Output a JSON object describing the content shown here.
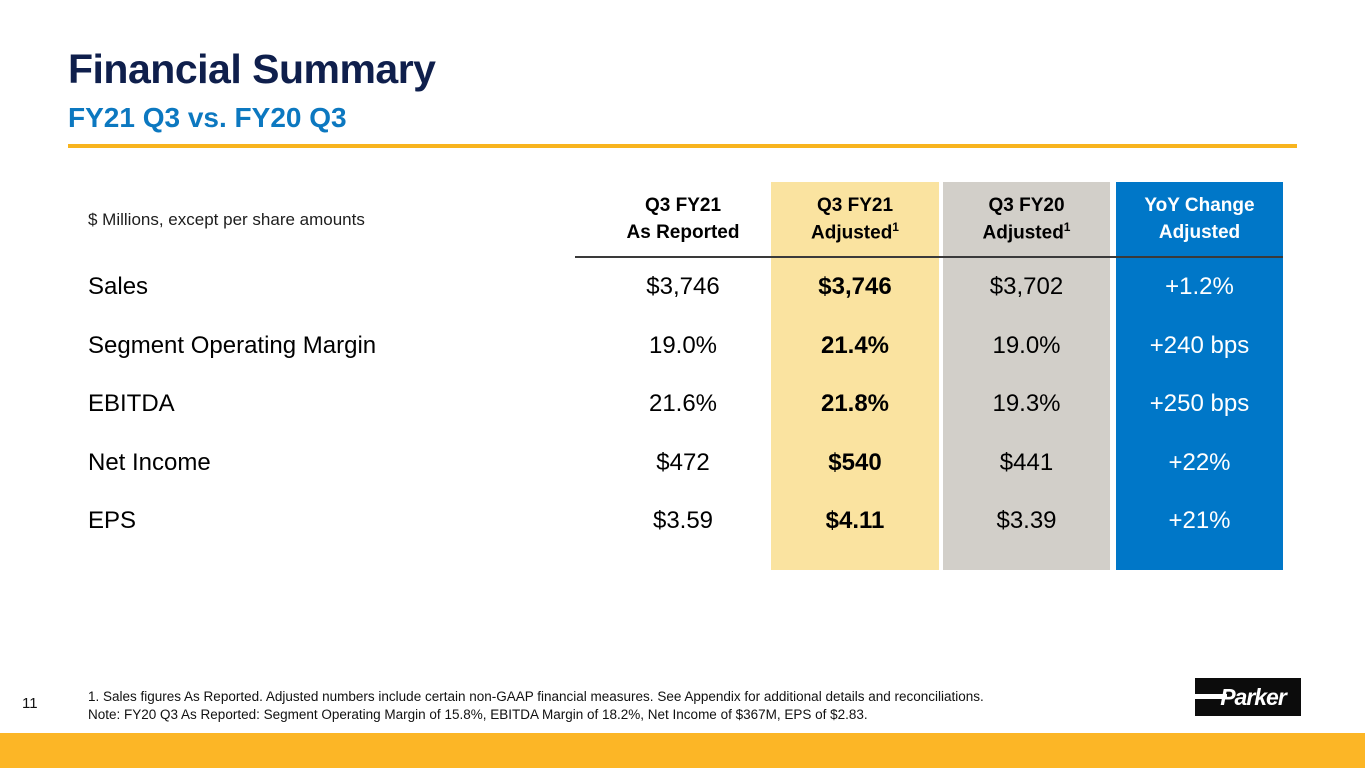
{
  "slide": {
    "title": "Financial Summary",
    "subtitle": "FY21 Q3 vs. FY20 Q3",
    "page_number": "11",
    "logo_text": "Parker"
  },
  "table": {
    "unit_note": "$ Millions, except per share amounts",
    "columns": [
      {
        "line1": "Q3 FY21",
        "line2": "As Reported",
        "superscript": ""
      },
      {
        "line1": "Q3 FY21",
        "line2": "Adjusted",
        "superscript": "1"
      },
      {
        "line1": "Q3 FY20",
        "line2": "Adjusted",
        "superscript": "1"
      },
      {
        "line1": "YoY Change",
        "line2": "Adjusted",
        "superscript": ""
      }
    ],
    "rows": [
      {
        "label": "Sales",
        "values": [
          "$3,746",
          "$3,746",
          "$3,702",
          "+1.2%"
        ]
      },
      {
        "label": "Segment Operating Margin",
        "values": [
          "19.0%",
          "21.4%",
          "19.0%",
          "+240 bps"
        ]
      },
      {
        "label": "EBITDA",
        "values": [
          "21.6%",
          "21.8%",
          "19.3%",
          "+250 bps"
        ]
      },
      {
        "label": "Net Income",
        "values": [
          "$472",
          "$540",
          "$441",
          "+22%"
        ]
      },
      {
        "label": "EPS",
        "values": [
          "$3.59",
          "$4.11",
          "$3.39",
          "+21%"
        ]
      }
    ]
  },
  "footnotes": {
    "line1": "1. Sales figures As Reported. Adjusted numbers include certain non-GAAP financial measures. See Appendix for additional details and reconciliations.",
    "line2": "Note: FY20 Q3 As Reported: Segment Operating Margin of 15.8%, EBITDA Margin of 18.2%, Net Income of $367M, EPS of $2.83."
  },
  "colors": {
    "title_navy": "#0f1f4c",
    "subtitle_blue": "#0c78c0",
    "gold_rule": "#f8b41e",
    "bottom_bar_gold": "#fcb626",
    "column_yellow": "#fae3a0",
    "column_gray": "#d2cfc9",
    "column_blue": "#0077c8",
    "header_divider": "#3a3a3a"
  }
}
